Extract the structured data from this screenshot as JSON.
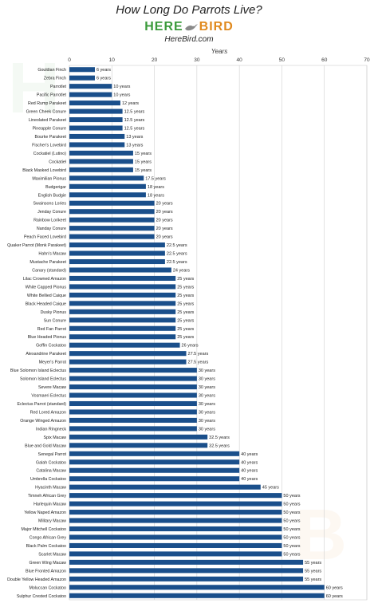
{
  "title": "How Long Do Parrots Live?",
  "logo": {
    "here": "HERE",
    "bird": "BIRD"
  },
  "site": "HereBird.com",
  "chart_data": {
    "type": "bar",
    "orientation": "horizontal",
    "xlabel": "Years",
    "xlim": [
      0,
      70
    ],
    "xticks": [
      0,
      10,
      20,
      30,
      40,
      50,
      60,
      70
    ],
    "grid": true,
    "bar_color": "#1a4f8b",
    "value_suffix": " years",
    "categories": [
      "Gouldian Finch",
      "Zebra Finch",
      "Parrotlet",
      "Pacific Parrotlet",
      "Red Rump Parakeet",
      "Green Cheek Conure",
      "Lineolated Parakeet",
      "Pineapple Conure",
      "Bourke Parakeet",
      "Fischer's Lovebird",
      "Cockatiel (Lutino)",
      "Cockatiel",
      "Black Masked Lovebird",
      "Maximilian Pionus",
      "Budgerigar",
      "English Budgie",
      "Swainsons Lories",
      "Jenday Conure",
      "Rainbow Lorikeet",
      "Nanday Conure",
      "Peach Faced Lovebird",
      "Quaker Parrot (Monk Parakeet)",
      "Hahn's Macaw",
      "Mustache Parakeet",
      "Canary (standard)",
      "Lilac Crowned Amazon",
      "White Capped Pionus",
      "White Bellied Caique",
      "Black Headed Caique",
      "Dusky Pionus",
      "Sun Conure",
      "Red Fan Parrot",
      "Blue Headed Pionus",
      "Goffin Cockatoo",
      "Alexandrine Parakeet",
      "Meyer's Parrot",
      "Blue Solomon Island Eclectus",
      "Solomon Island Eclectus",
      "Severe Macaw",
      "Vosmaeri Eclectus",
      "Eclectus Parrot (standard)",
      "Red Lored Amazon",
      "Orange Winged Amazon",
      "Indian Ringneck",
      "Spix Macaw",
      "Blue and Gold Macaw",
      "Senegal Parrot",
      "Galah Cockatoo",
      "Catalina Macaw",
      "Umbrella Cockatoo",
      "Hyacinth Macaw",
      "Timneh African Grey",
      "Harlequin Macaw",
      "Yellow Naped Amazon",
      "Military Macaw",
      "Major Mitchell Cockatoo",
      "Congo African Grey",
      "Black Palm Cockatoo",
      "Scarlet Macaw",
      "Green Wing Macaw",
      "Blue Fronted Amazon",
      "Double Yellow Headed Amazon",
      "Moluccan Cockatoo",
      "Sulphur Crested Cockatoo"
    ],
    "values": [
      6,
      6,
      10,
      10,
      12,
      12.5,
      12.5,
      12.5,
      13,
      13,
      15,
      15,
      15,
      17.5,
      18,
      18,
      20,
      20,
      20,
      20,
      20,
      22.5,
      22.5,
      22.5,
      24,
      25,
      25,
      25,
      25,
      25,
      25,
      25,
      25,
      26,
      27.5,
      27.5,
      30,
      30,
      30,
      30,
      30,
      30,
      30,
      30,
      32.5,
      32.5,
      40,
      40,
      40,
      40,
      45,
      50,
      50,
      50,
      50,
      50,
      50,
      50,
      50,
      55,
      55,
      55,
      60,
      60
    ]
  }
}
